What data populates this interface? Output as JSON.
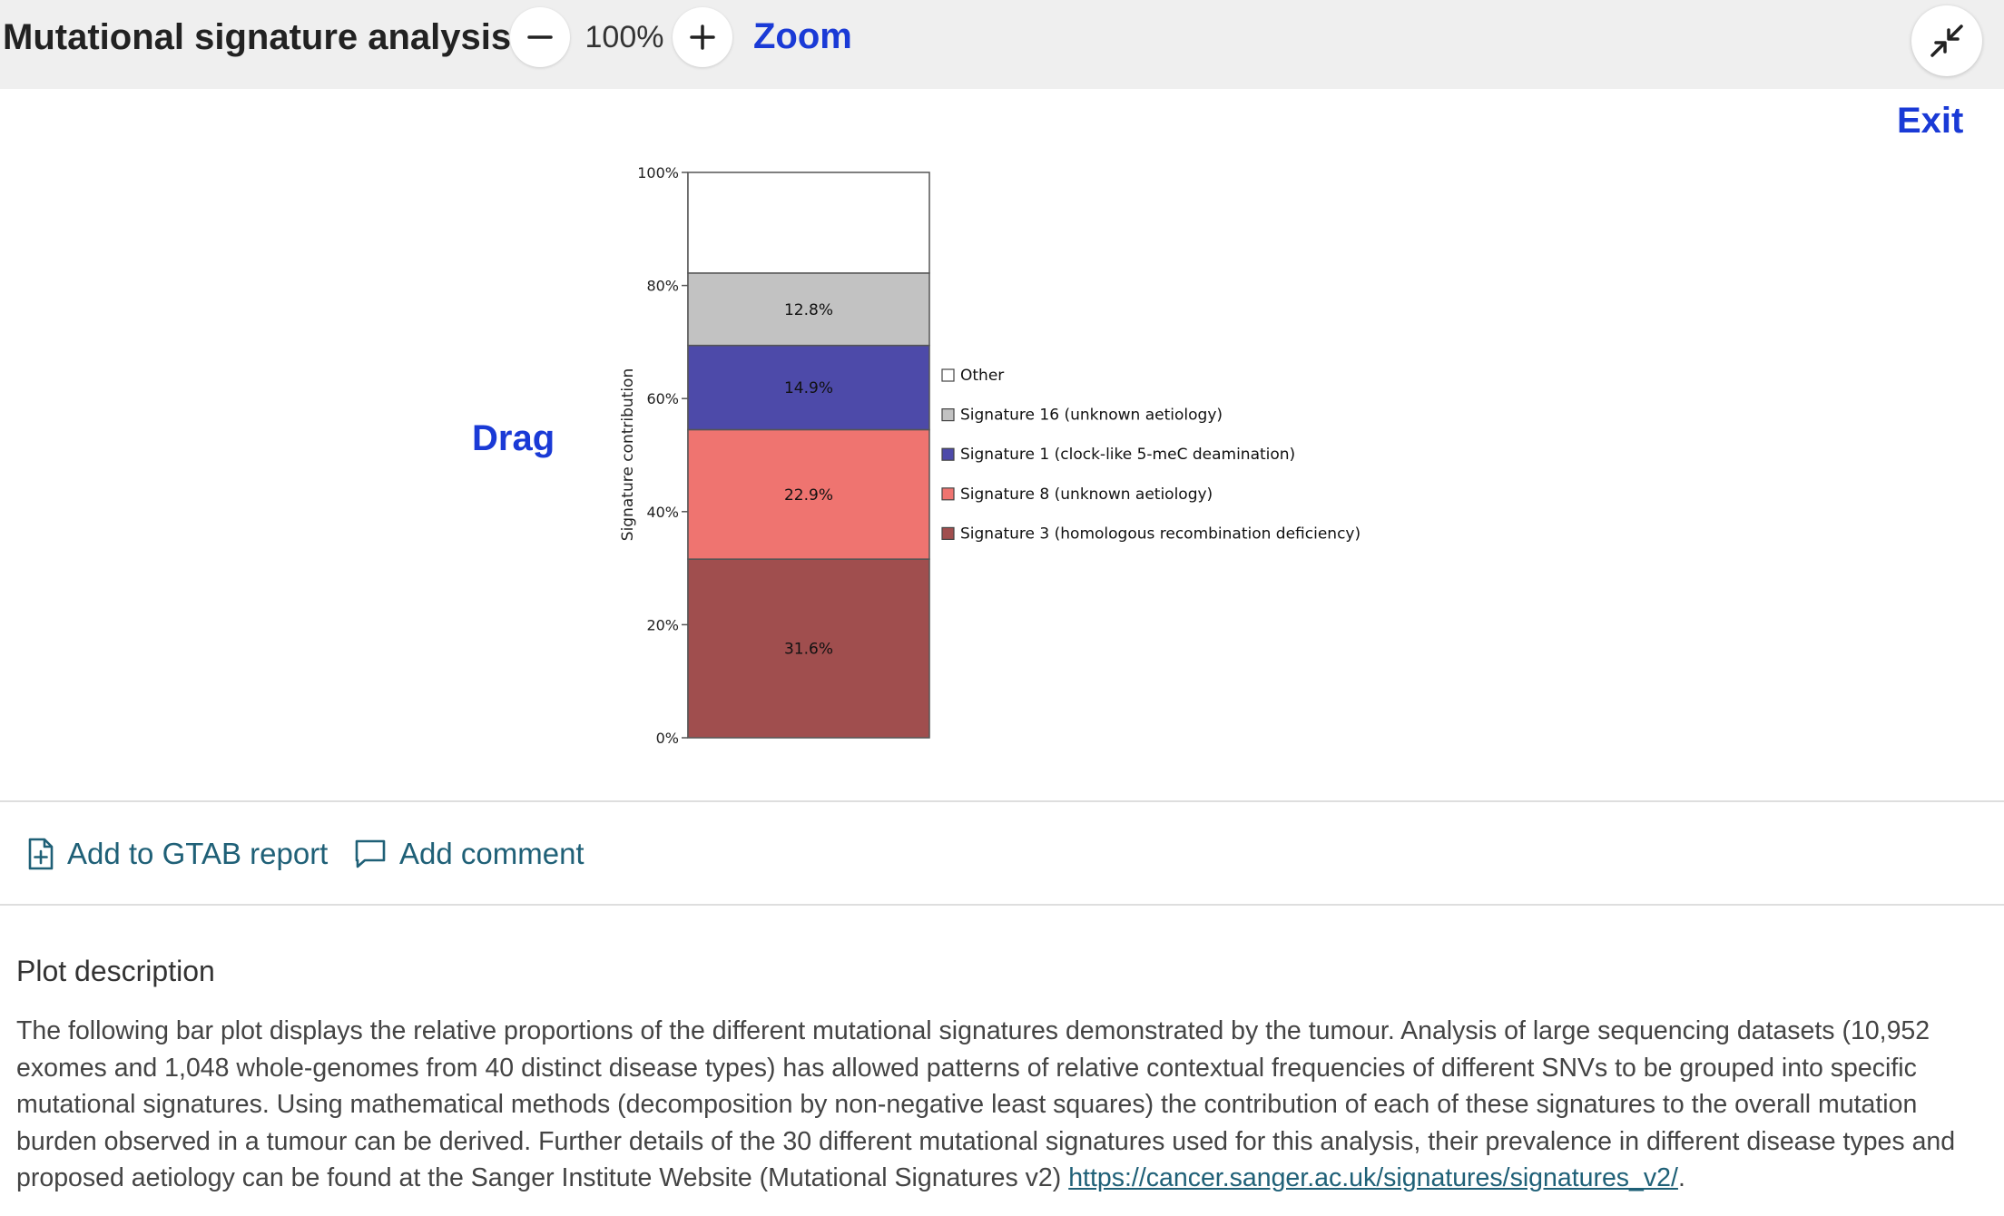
{
  "header": {
    "title": "Mutational signature analysis",
    "zoom_level": "100%",
    "zoom_label": "Zoom",
    "exit_label": "Exit",
    "drag_label": "Drag"
  },
  "actions": {
    "add_report": "Add to GTAB report",
    "add_comment": "Add comment"
  },
  "description": {
    "title": "Plot description",
    "body": "The following bar plot displays the relative proportions of the different mutational signatures demonstrated by the tumour. Analysis of large sequencing datasets (10,952 exomes and 1,048 whole-genomes from 40 distinct disease types) has allowed patterns of relative contextual frequencies of different SNVs to be grouped into specific mutational signatures. Using mathematical methods (decomposition by non-negative least squares) the contribution of each of these signatures to the overall mutation burden observed in a tumour can be derived. Further details of the 30 different mutational signatures used for this analysis, their prevalence in different disease types and proposed aetiology can be found at the Sanger Institute Website (Mutational Signatures v2) ",
    "link": "https://cancer.sanger.ac.uk/signatures/signatures_v2/",
    "link_suffix": "."
  },
  "chart_data": {
    "type": "bar",
    "stacked": true,
    "ylabel": "Signature contribution",
    "ylim": [
      0,
      100
    ],
    "yticks": [
      "0%",
      "20%",
      "40%",
      "60%",
      "80%",
      "100%"
    ],
    "legend_position": "right",
    "series": [
      {
        "name": "Signature 3 (homologous recombination deficiency)",
        "value": 31.6,
        "label": "31.6%",
        "color": "#a04e4e"
      },
      {
        "name": "Signature 8 (unknown aetiology)",
        "value": 22.9,
        "label": "22.9%",
        "color": "#ef7470"
      },
      {
        "name": "Signature 1 (clock-like 5-meC deamination)",
        "value": 14.9,
        "label": "14.9%",
        "color": "#4d4aa9"
      },
      {
        "name": "Signature 16 (unknown aetiology)",
        "value": 12.8,
        "label": "12.8%",
        "color": "#c2c2c2"
      },
      {
        "name": "Other",
        "value": 17.8,
        "label": "",
        "color": "#ffffff"
      }
    ]
  }
}
